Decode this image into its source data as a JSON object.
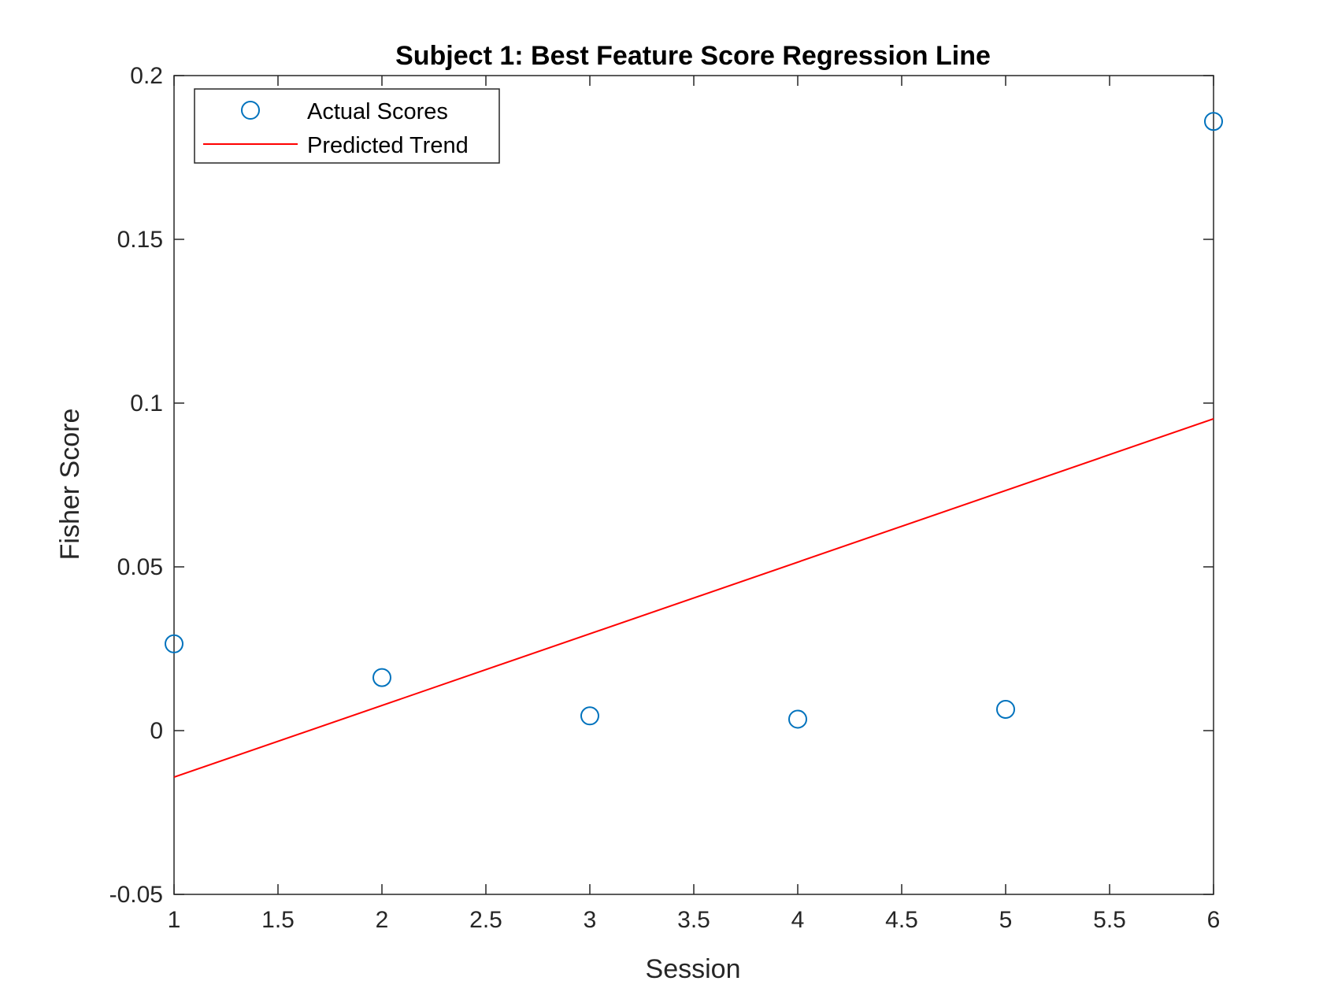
{
  "chart_data": {
    "type": "scatter",
    "title": "Subject 1: Best Feature Score Regression Line",
    "xlabel": "Session",
    "ylabel": "Fisher Score",
    "xlim": [
      1,
      6
    ],
    "ylim": [
      -0.05,
      0.2
    ],
    "x_ticks": [
      "1",
      "1.5",
      "2",
      "2.5",
      "3",
      "3.5",
      "4",
      "4.5",
      "5",
      "5.5",
      "6"
    ],
    "y_ticks": [
      "-0.05",
      "0",
      "0.05",
      "0.1",
      "0.15",
      "0.2"
    ],
    "grid": false,
    "legend": {
      "position": "top-left",
      "entries": [
        "Actual Scores",
        "Predicted Trend"
      ]
    },
    "series": [
      {
        "name": "Actual Scores",
        "kind": "scatter",
        "marker": "circle",
        "color": "#0072BD",
        "x": [
          1,
          2,
          3,
          4,
          5,
          6
        ],
        "y": [
          0.0265,
          0.0162,
          0.0045,
          0.0035,
          0.0065,
          0.186
        ]
      },
      {
        "name": "Predicted Trend",
        "kind": "line",
        "color": "#FF0000",
        "x": [
          1,
          6
        ],
        "y": [
          -0.0142,
          0.0952
        ]
      }
    ]
  }
}
